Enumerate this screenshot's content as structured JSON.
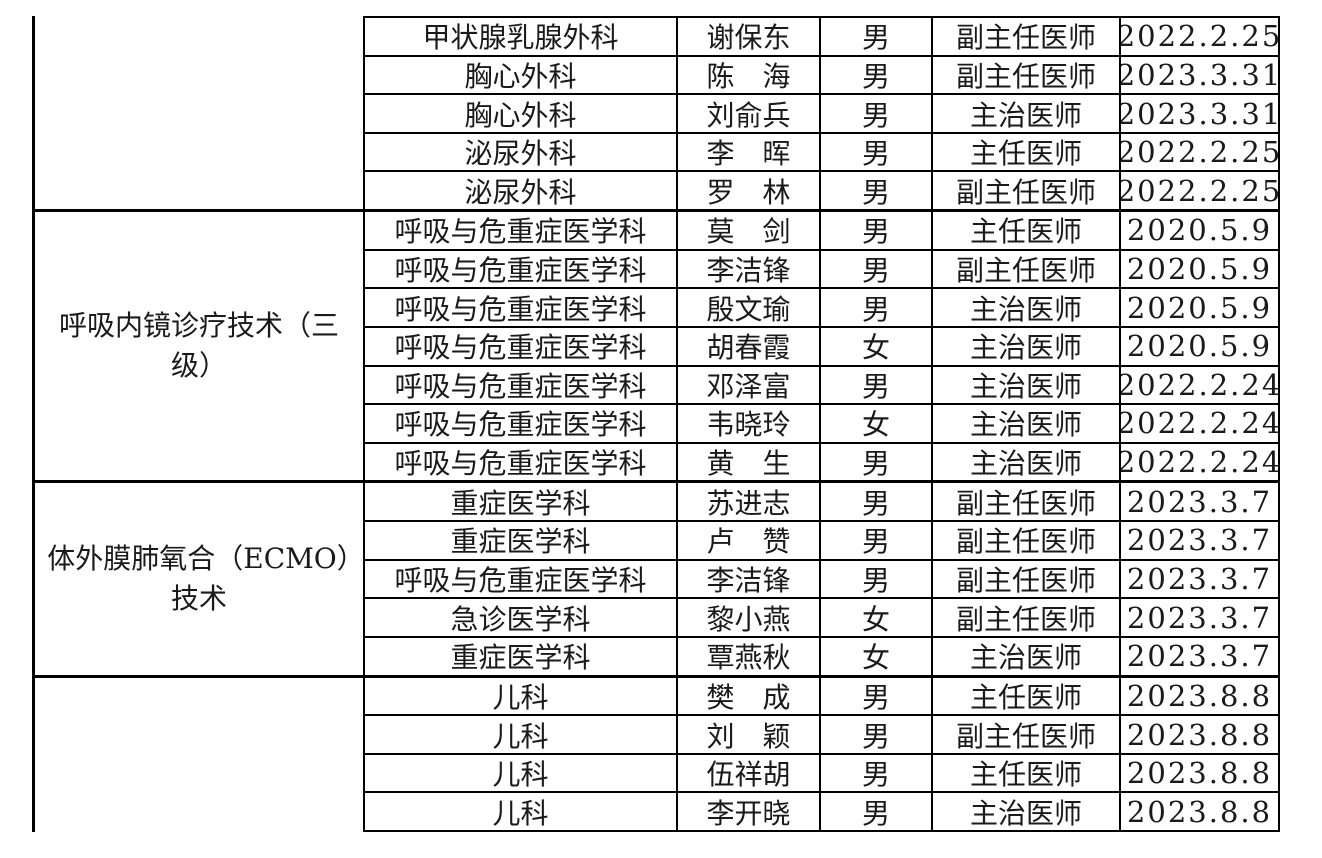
{
  "page": {
    "background_color": "#ffffff",
    "text_color": "#1a1a1a",
    "border_color": "#000000"
  },
  "table": {
    "column_keys": [
      "department",
      "name",
      "gender",
      "title",
      "date"
    ],
    "groups": [
      {
        "technology": "",
        "rows": [
          {
            "department": "甲状腺乳腺外科",
            "name": "谢保东",
            "gender": "男",
            "title": "副主任医师",
            "date": "2022.2.25"
          },
          {
            "department": "胸心外科",
            "name": "陈　海",
            "gender": "男",
            "title": "副主任医师",
            "date": "2023.3.31"
          },
          {
            "department": "胸心外科",
            "name": "刘俞兵",
            "gender": "男",
            "title": "主治医师",
            "date": "2023.3.31"
          },
          {
            "department": "泌尿外科",
            "name": "李　晖",
            "gender": "男",
            "title": "主任医师",
            "date": "2022.2.25"
          },
          {
            "department": "泌尿外科",
            "name": "罗　林",
            "gender": "男",
            "title": "副主任医师",
            "date": "2022.2.25"
          }
        ]
      },
      {
        "technology": "呼吸内镜诊疗技术（三级）",
        "rows": [
          {
            "department": "呼吸与危重症医学科",
            "name": "莫　剑",
            "gender": "男",
            "title": "主任医师",
            "date": "2020.5.9"
          },
          {
            "department": "呼吸与危重症医学科",
            "name": "李洁锋",
            "gender": "男",
            "title": "副主任医师",
            "date": "2020.5.9"
          },
          {
            "department": "呼吸与危重症医学科",
            "name": "殷文瑜",
            "gender": "男",
            "title": "主治医师",
            "date": "2020.5.9"
          },
          {
            "department": "呼吸与危重症医学科",
            "name": "胡春霞",
            "gender": "女",
            "title": "主治医师",
            "date": "2020.5.9"
          },
          {
            "department": "呼吸与危重症医学科",
            "name": "邓泽富",
            "gender": "男",
            "title": "主治医师",
            "date": "2022.2.24"
          },
          {
            "department": "呼吸与危重症医学科",
            "name": "韦晓玲",
            "gender": "女",
            "title": "主治医师",
            "date": "2022.2.24"
          },
          {
            "department": "呼吸与危重症医学科",
            "name": "黄　生",
            "gender": "男",
            "title": "主治医师",
            "date": "2022.2.24"
          }
        ]
      },
      {
        "technology": "体外膜肺氧合（ECMO）技术",
        "rows": [
          {
            "department": "重症医学科",
            "name": "苏进志",
            "gender": "男",
            "title": "副主任医师",
            "date": "2023.3.7"
          },
          {
            "department": "重症医学科",
            "name": "卢　赞",
            "gender": "男",
            "title": "副主任医师",
            "date": "2023.3.7"
          },
          {
            "department": "呼吸与危重症医学科",
            "name": "李洁锋",
            "gender": "男",
            "title": "副主任医师",
            "date": "2023.3.7"
          },
          {
            "department": "急诊医学科",
            "name": "黎小燕",
            "gender": "女",
            "title": "副主任医师",
            "date": "2023.3.7"
          },
          {
            "department": "重症医学科",
            "name": "覃燕秋",
            "gender": "女",
            "title": "主治医师",
            "date": "2023.3.7"
          }
        ]
      },
      {
        "technology": "",
        "rows": [
          {
            "department": "儿科",
            "name": "樊　成",
            "gender": "男",
            "title": "主任医师",
            "date": "2023.8.8"
          },
          {
            "department": "儿科",
            "name": "刘　颖",
            "gender": "男",
            "title": "副主任医师",
            "date": "2023.8.8"
          },
          {
            "department": "儿科",
            "name": "伍祥胡",
            "gender": "男",
            "title": "主任医师",
            "date": "2023.8.8"
          },
          {
            "department": "儿科",
            "name": "李开晓",
            "gender": "男",
            "title": "主治医师",
            "date": "2023.8.8"
          }
        ]
      }
    ]
  }
}
